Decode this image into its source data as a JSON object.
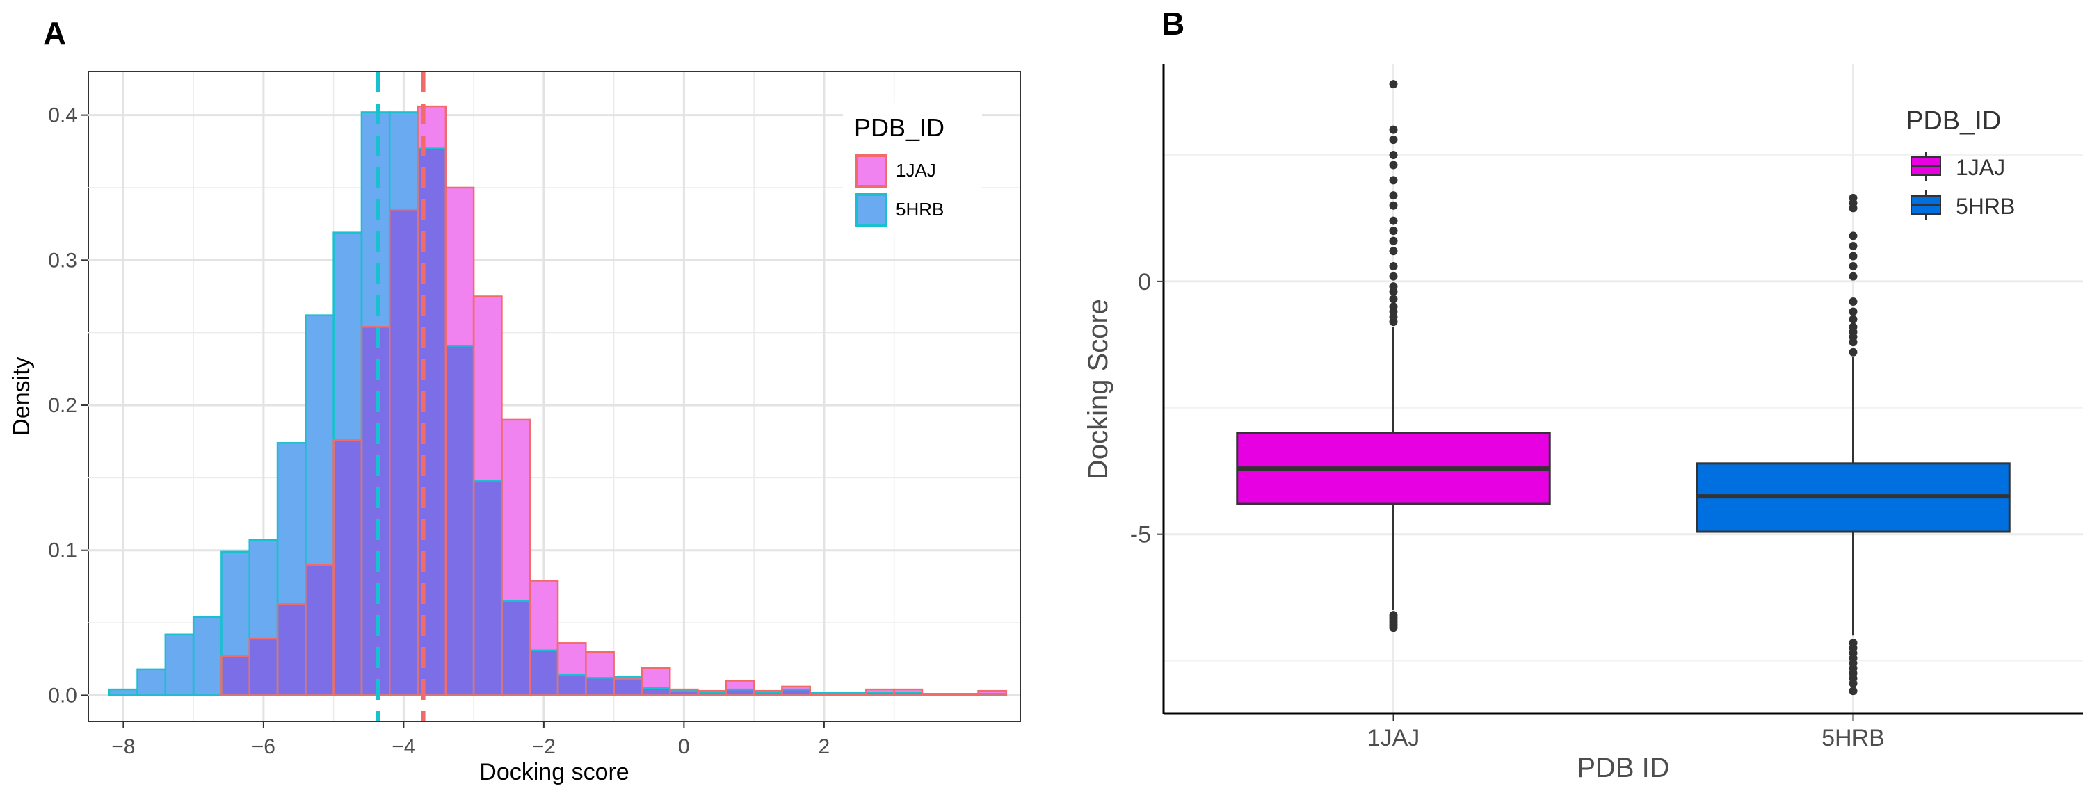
{
  "colors": {
    "hist_1JAJ_fill": "#f183f0",
    "hist_1JAJ_line": "#f26b6b",
    "hist_5HRB_fill": "#6aaaf0",
    "hist_5HRB_line": "#19c0cf",
    "overlap_fill": "#7b6ee6",
    "box_1JAJ": "#e600e2",
    "box_5HRB": "#0070e0",
    "grid": "#ebebeb",
    "axis_text": "#4d4d4d"
  },
  "chart_data": [
    {
      "panel": "A",
      "type": "bar",
      "subtype": "overlapping-histogram",
      "title": "",
      "xlabel": "Docking score",
      "ylabel": "Density",
      "xlim": [
        -8.5,
        4.8
      ],
      "ylim": [
        -0.018,
        0.43
      ],
      "xticks": [
        -8,
        -6,
        -4,
        -2,
        0,
        2
      ],
      "xtick_labels": [
        "−8",
        "−6",
        "−4",
        "−2",
        "0",
        "2"
      ],
      "yticks": [
        0.0,
        0.1,
        0.2,
        0.3,
        0.4
      ],
      "ytick_labels": [
        "0.0",
        "0.1",
        "0.2",
        "0.3",
        "0.4"
      ],
      "bin_width": 0.4,
      "bin_starts": [
        -8.2,
        -7.8,
        -7.4,
        -7.0,
        -6.6,
        -6.2,
        -5.8,
        -5.4,
        -5.0,
        -4.6,
        -4.2,
        -3.8,
        -3.4,
        -3.0,
        -2.6,
        -2.2,
        -1.8,
        -1.4,
        -1.0,
        -0.6,
        -0.2,
        0.2,
        0.6,
        1.0,
        1.4,
        1.8,
        2.2,
        2.6,
        3.0,
        3.4,
        3.8,
        4.2
      ],
      "series": [
        {
          "name": "5HRB",
          "values": [
            0.004,
            0.018,
            0.042,
            0.054,
            0.099,
            0.107,
            0.174,
            0.262,
            0.319,
            0.402,
            0.402,
            0.377,
            0.241,
            0.148,
            0.065,
            0.031,
            0.014,
            0.012,
            0.013,
            0.005,
            0.003,
            0.002,
            0.004,
            0.002,
            0.004,
            0.002,
            0.002,
            0.002,
            0.002,
            0.001,
            0.001,
            0.001
          ],
          "mean_line": -4.37
        },
        {
          "name": "1JAJ",
          "values": [
            0.0,
            0.0,
            0.0,
            0.0,
            0.027,
            0.039,
            0.063,
            0.09,
            0.176,
            0.254,
            0.335,
            0.406,
            0.35,
            0.275,
            0.19,
            0.079,
            0.036,
            0.03,
            0.011,
            0.019,
            0.004,
            0.003,
            0.01,
            0.003,
            0.006,
            0.001,
            0.001,
            0.004,
            0.004,
            0.001,
            0.001,
            0.003
          ],
          "mean_line": -3.72
        }
      ],
      "legend": {
        "title": "PDB_ID",
        "entries": [
          "1JAJ",
          "5HRB"
        ],
        "position": "top-right"
      }
    },
    {
      "panel": "B",
      "type": "box",
      "title": "",
      "xlabel": "PDB ID",
      "ylabel": "Docking Score",
      "categories": [
        "1JAJ",
        "5HRB"
      ],
      "ylim": [
        -8.55,
        4.3
      ],
      "yticks": [
        0,
        -5
      ],
      "ytick_labels": [
        "0",
        "-5"
      ],
      "series": [
        {
          "name": "1JAJ",
          "q1": -4.4,
          "median": -3.7,
          "q3": -3.0,
          "whisker_low": -6.5,
          "whisker_high": -0.9,
          "outliers": [
            3.9,
            3.0,
            2.8,
            2.5,
            2.3,
            2.0,
            1.7,
            1.5,
            1.2,
            1.0,
            0.8,
            0.6,
            0.3,
            0.1,
            -0.1,
            -0.2,
            -0.35,
            -0.5,
            -0.6,
            -0.7,
            -0.8,
            -6.6,
            -6.65,
            -6.7,
            -6.75,
            -6.8,
            -6.85
          ]
        },
        {
          "name": "5HRB",
          "q1": -4.95,
          "median": -4.25,
          "q3": -3.6,
          "whisker_low": -7.0,
          "whisker_high": -1.5,
          "outliers": [
            1.65,
            1.55,
            1.45,
            0.9,
            0.7,
            0.5,
            0.3,
            0.1,
            -0.4,
            -0.6,
            -0.75,
            -0.9,
            -1.0,
            -1.1,
            -1.2,
            -1.4,
            -7.15,
            -7.25,
            -7.35,
            -7.45,
            -7.55,
            -7.65,
            -7.75,
            -7.85,
            -7.95,
            -8.1
          ]
        }
      ],
      "legend": {
        "title": "PDB_ID",
        "entries": [
          "1JAJ",
          "5HRB"
        ],
        "position": "top-right"
      }
    }
  ],
  "panels": {
    "A": {
      "tag": "A"
    },
    "B": {
      "tag": "B"
    }
  }
}
